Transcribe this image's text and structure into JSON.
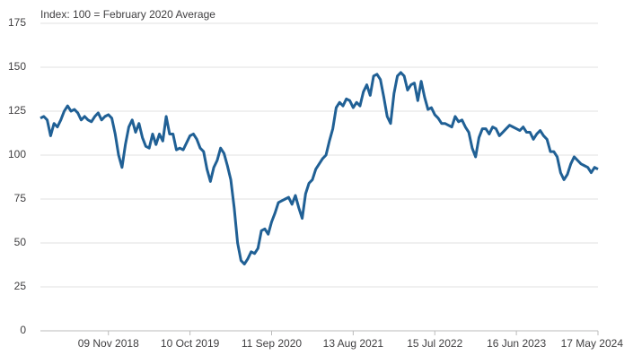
{
  "chart_data": {
    "type": "line",
    "subtitle": "Index: 100 = February 2020 Average",
    "categories": [
      null,
      null,
      null,
      null,
      null,
      null,
      null,
      null,
      null,
      null,
      null,
      null,
      null,
      null,
      null,
      null,
      null,
      null,
      null,
      null,
      "09 Nov 2018",
      null,
      null,
      null,
      null,
      null,
      null,
      null,
      null,
      null,
      null,
      null,
      null,
      null,
      null,
      null,
      null,
      null,
      null,
      null,
      null,
      null,
      null,
      null,
      "10 Oct 2019",
      null,
      null,
      null,
      null,
      null,
      null,
      null,
      null,
      null,
      null,
      null,
      null,
      null,
      null,
      null,
      null,
      null,
      null,
      null,
      null,
      null,
      null,
      null,
      "11 Sep 2020",
      null,
      null,
      null,
      null,
      null,
      null,
      null,
      null,
      null,
      null,
      null,
      null,
      null,
      null,
      null,
      null,
      null,
      null,
      null,
      null,
      null,
      null,
      null,
      "13 Aug 2021",
      null,
      null,
      null,
      null,
      null,
      null,
      null,
      null,
      null,
      null,
      null,
      null,
      null,
      null,
      null,
      null,
      null,
      null,
      null,
      null,
      null,
      null,
      null,
      "15 Jul 2022",
      null,
      null,
      null,
      null,
      null,
      null,
      null,
      null,
      null,
      null,
      null,
      null,
      null,
      null,
      null,
      null,
      null,
      null,
      null,
      null,
      null,
      null,
      null,
      "16 Jun 2023",
      null,
      null,
      null,
      null,
      null,
      null,
      null,
      null,
      null,
      null,
      null,
      null,
      null,
      null,
      null,
      null,
      null,
      null,
      null,
      null,
      null,
      null,
      null,
      "17 May 2024"
    ],
    "values": [
      121,
      122,
      120,
      111,
      118,
      116,
      120,
      125,
      128,
      125,
      126,
      124,
      120,
      122,
      120,
      119,
      122,
      124,
      120,
      122,
      123,
      121,
      112,
      100,
      93,
      106,
      116,
      120,
      113,
      118,
      110,
      105,
      104,
      112,
      106,
      112,
      108,
      122,
      112,
      112,
      103,
      104,
      103,
      107,
      111,
      112,
      109,
      104,
      102,
      92,
      85,
      93,
      97,
      104,
      101,
      94,
      86,
      70,
      50,
      40,
      38,
      41,
      45,
      44,
      47,
      57,
      58,
      55,
      62,
      67,
      73,
      74,
      75,
      76,
      72,
      77,
      70,
      64,
      78,
      84,
      86,
      92,
      95,
      98,
      100,
      108,
      115,
      127,
      130,
      128,
      132,
      131,
      127,
      130,
      128,
      136,
      140,
      134,
      145,
      146,
      143,
      133,
      122,
      118,
      135,
      145,
      147,
      145,
      137,
      140,
      141,
      131,
      142,
      133,
      126,
      127,
      123,
      121,
      118,
      118,
      117,
      116,
      122,
      119,
      120,
      116,
      113,
      104,
      99,
      110,
      115,
      115,
      112,
      116,
      115,
      111,
      113,
      115,
      117,
      116,
      115,
      114,
      116,
      113,
      113,
      109,
      112,
      114,
      111,
      109,
      102,
      102,
      99,
      90,
      86,
      89,
      95,
      99,
      97,
      95,
      94,
      93,
      90,
      93,
      92
    ],
    "color": "#206095",
    "ylim": [
      0,
      175
    ],
    "yticks": [
      0,
      25,
      50,
      75,
      100,
      125,
      150,
      175
    ],
    "grid": true
  }
}
